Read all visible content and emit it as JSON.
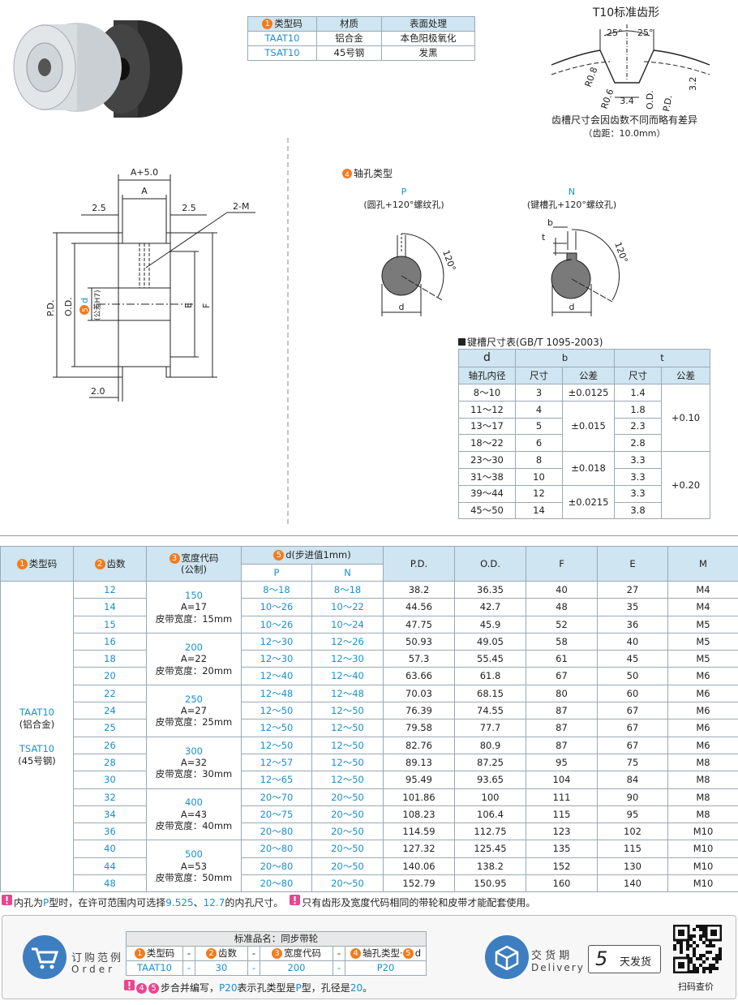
{
  "material_table": {
    "header_badge": "1",
    "headers": [
      "类型码",
      "材质",
      "表面处理"
    ],
    "rows": [
      [
        "TAAT10",
        "铝合金",
        "本色阳极氧化"
      ],
      [
        "TSAT10",
        "45号钢",
        "发黑"
      ]
    ]
  },
  "tooth_profile": {
    "title": "T10标准齿形",
    "angle_left": "25°",
    "angle_right": "25°",
    "r_top": "R0.8",
    "r_bottom": "R0.6",
    "width": "3.4",
    "od": "O.D.",
    "pd": "P.D.",
    "depth": "3.2",
    "note": "齿槽尺寸会因齿数不同而略有差异",
    "pitch": "（齿距：10.0mm）"
  },
  "pulley_drawing": {
    "a_plus": "A+5.0",
    "a": "A",
    "left_offset": "2.5",
    "right_offset": "2.5",
    "thread": "2-M",
    "pd": "P.D.",
    "od": "O.D.",
    "d_badge": "5",
    "d": "d",
    "d_tolerance": "(公差H7)",
    "e": "E",
    "f": "F",
    "flange": "2.0"
  },
  "bore_types": {
    "badge": "4",
    "title": "轴孔类型",
    "p": {
      "code": "P",
      "desc": "(圆孔+120°螺纹孔)",
      "angle": "120°",
      "d": "d"
    },
    "n": {
      "code": "N",
      "desc": "(键槽孔+120°螺纹孔)",
      "angle": "120°",
      "d": "d",
      "b": "b",
      "t": "t"
    }
  },
  "keyway_table": {
    "title": "键槽尺寸表(GB/T 1095-2003)",
    "head_d": "d",
    "head_b": "b",
    "head_t": "t",
    "head_bore": "轴孔内径",
    "head_size_b": "尺寸",
    "head_tol_b": "公差",
    "head_size_t": "尺寸",
    "head_tol_t": "公差",
    "rows": [
      {
        "d": "8～10",
        "b": "3",
        "t": "1.4"
      },
      {
        "d": "11～12",
        "b": "4",
        "t": "1.8"
      },
      {
        "d": "13～17",
        "b": "5",
        "t": "2.3"
      },
      {
        "d": "18～22",
        "b": "6",
        "t": "2.8"
      },
      {
        "d": "23～30",
        "b": "8",
        "t": "3.3"
      },
      {
        "d": "31～38",
        "b": "10",
        "t": "3.3"
      },
      {
        "d": "39～44",
        "b": "12",
        "t": "3.3"
      },
      {
        "d": "45～50",
        "b": "14",
        "t": "3.8"
      }
    ],
    "b_tolerances": [
      {
        "value": "±0.0125",
        "span": 1
      },
      {
        "value": "±0.015",
        "span": 3
      },
      {
        "value": "±0.018",
        "span": 2
      },
      {
        "value": "±0.0215",
        "span": 2
      }
    ],
    "t_tolerances": [
      {
        "value": "+0.10",
        "span": 4
      },
      {
        "value": "+0.20",
        "span": 4
      }
    ]
  },
  "spec_table": {
    "headers": {
      "type_badge": "1",
      "type": "类型码",
      "teeth_badge": "2",
      "teeth": "齿数",
      "width_badge": "3",
      "width": "宽度代码",
      "width_sub": "(公制)",
      "d_badge": "5",
      "d": "d(步进值1mm)",
      "p": "P",
      "n": "N",
      "pd": "P.D.",
      "od": "O.D.",
      "f": "F",
      "e": "E",
      "m": "M"
    },
    "type_cells": [
      "TAAT10",
      "(铝合金)",
      "TSAT10",
      "(45号钢)"
    ],
    "width_groups": [
      {
        "code": "150",
        "a": "A=17",
        "belt": "皮带宽度：15mm",
        "span": 3
      },
      {
        "code": "200",
        "a": "A=22",
        "belt": "皮带宽度：20mm",
        "span": 3
      },
      {
        "code": "250",
        "a": "A=27",
        "belt": "皮带宽度：25mm",
        "span": 3
      },
      {
        "code": "300",
        "a": "A=32",
        "belt": "皮带宽度：30mm",
        "span": 3
      },
      {
        "code": "400",
        "a": "A=43",
        "belt": "皮带宽度：40mm",
        "span": 3
      },
      {
        "code": "500",
        "a": "A=53",
        "belt": "皮带宽度：50mm",
        "span": 3
      }
    ],
    "rows": [
      [
        "12",
        "8～18",
        "8～18",
        "38.2",
        "36.35",
        "40",
        "27",
        "M4"
      ],
      [
        "14",
        "10～26",
        "10～22",
        "44.56",
        "42.7",
        "48",
        "35",
        "M4"
      ],
      [
        "15",
        "10～26",
        "10～24",
        "47.75",
        "45.9",
        "52",
        "36",
        "M5"
      ],
      [
        "16",
        "12～30",
        "12～26",
        "50.93",
        "49.05",
        "58",
        "40",
        "M5"
      ],
      [
        "18",
        "12～30",
        "12～30",
        "57.3",
        "55.45",
        "61",
        "45",
        "M5"
      ],
      [
        "20",
        "12～40",
        "12～40",
        "63.66",
        "61.8",
        "67",
        "50",
        "M6"
      ],
      [
        "22",
        "12～48",
        "12～48",
        "70.03",
        "68.15",
        "80",
        "60",
        "M6"
      ],
      [
        "24",
        "12～50",
        "12～50",
        "76.39",
        "74.55",
        "87",
        "67",
        "M6"
      ],
      [
        "25",
        "12～50",
        "12～50",
        "79.58",
        "77.7",
        "87",
        "67",
        "M6"
      ],
      [
        "26",
        "12～50",
        "12～50",
        "82.76",
        "80.9",
        "87",
        "67",
        "M6"
      ],
      [
        "28",
        "12～57",
        "12～50",
        "89.13",
        "87.25",
        "95",
        "75",
        "M8"
      ],
      [
        "30",
        "12～65",
        "12～50",
        "95.49",
        "93.65",
        "104",
        "84",
        "M8"
      ],
      [
        "32",
        "20～70",
        "20～50",
        "101.86",
        "100",
        "111",
        "90",
        "M8"
      ],
      [
        "34",
        "20～75",
        "20～50",
        "108.23",
        "106.4",
        "115",
        "95",
        "M8"
      ],
      [
        "36",
        "20～80",
        "20～50",
        "114.59",
        "112.75",
        "123",
        "102",
        "M10"
      ],
      [
        "40",
        "20～80",
        "20～50",
        "127.32",
        "125.45",
        "135",
        "115",
        "M10"
      ],
      [
        "44",
        "20～80",
        "20～50",
        "140.06",
        "138.2",
        "152",
        "130",
        "M10"
      ],
      [
        "48",
        "20～80",
        "20～50",
        "152.79",
        "150.95",
        "160",
        "140",
        "M10"
      ]
    ]
  },
  "notes": [
    {
      "parts": [
        "内孔为",
        "P",
        "型时，在许可范围内可选择",
        "9.525",
        "、",
        "12.7",
        "的内孔尺寸。"
      ]
    },
    {
      "parts": [
        "只有齿形及宽度代码相同的带轮和皮带才能配套使用。"
      ]
    }
  ],
  "order": {
    "title": "订购范例",
    "subtitle": "Order",
    "table_title": "标准品名：同步带轮",
    "separator": "-",
    "headers": [
      {
        "badge": "1",
        "text": "类型码"
      },
      {
        "badge": "2",
        "text": "齿数"
      },
      {
        "badge": "3",
        "text": "宽度代码"
      },
      {
        "badge": "4",
        "text": "轴孔类型·",
        "badge2": "5",
        "text2": "d"
      }
    ],
    "values": [
      "TAAT10",
      "30",
      "200",
      "P20"
    ],
    "note": {
      "badges": [
        "4",
        "5"
      ],
      "parts": [
        "步合并编写，",
        "P20",
        "表示孔类型是",
        "P",
        "型，孔径是",
        "20",
        "。"
      ]
    }
  },
  "delivery": {
    "title": "交 货 期",
    "subtitle": "Delivery",
    "days": "5",
    "unit": "天发货"
  },
  "qr_label": "扫码查价"
}
